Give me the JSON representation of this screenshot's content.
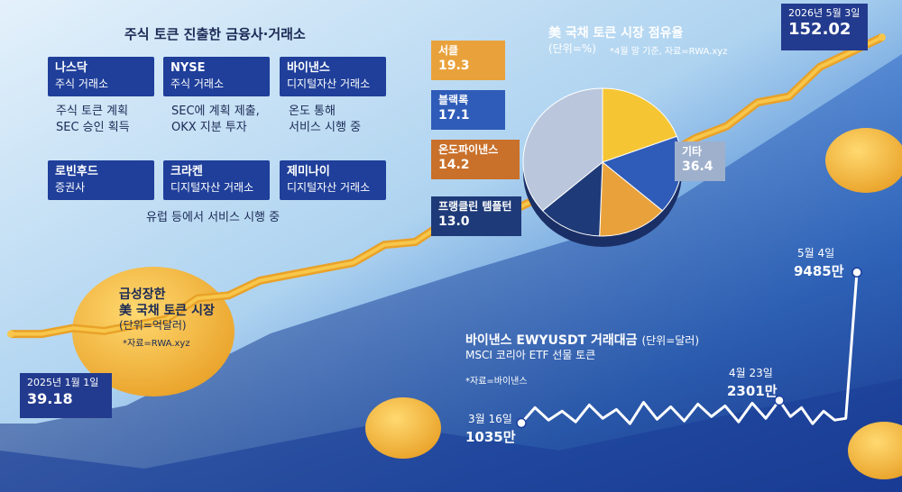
{
  "exchanges": {
    "title": "주식 토큰 진출한 금융사·거래소",
    "items": [
      {
        "name": "나스닥",
        "type": "주식 거래소",
        "note": [
          "주식 토큰 계획",
          "SEC 승인 획득"
        ]
      },
      {
        "name": "NYSE",
        "type": "주식 거래소",
        "note": [
          "SEC에 계획 제출,",
          "OKX 지분 투자"
        ]
      },
      {
        "name": "바이낸스",
        "type": "디지털자산 거래소",
        "note": [
          "온도 통해",
          "서비스 시행 중"
        ]
      },
      {
        "name": "로빈후드",
        "type": "증권사"
      },
      {
        "name": "크라켄",
        "type": "디지털자산 거래소"
      },
      {
        "name": "제미나이",
        "type": "디지털자산 거래소"
      }
    ],
    "bottom_note": "유럽 등에서 서비스 시행 중"
  },
  "chart_data": [
    {
      "type": "line",
      "title": "급성장한 美 국채 토큰 시장",
      "title_lines": [
        "급성장한",
        "美 국채 토큰 시장"
      ],
      "unit": "(단위=억달러)",
      "source": "*자료=RWA.xyz",
      "start": {
        "date": "2025년 1월 1일",
        "value": 39.18
      },
      "end": {
        "date": "2026년 5월 3일",
        "value": 152.02
      },
      "x": [
        "2025년 1월 1일",
        "2026년 5월 3일"
      ],
      "values": [
        39.18,
        152.02
      ]
    },
    {
      "type": "pie",
      "title": "美 국채 토큰 시장 점유율",
      "unit": "(단위=%)",
      "source": "*4월 말 기준, 자료=RWA.xyz",
      "categories": [
        "서클",
        "블랙록",
        "온도파이낸스",
        "프랭클린 템플턴",
        "기타"
      ],
      "values": [
        19.3,
        17.1,
        14.2,
        13.0,
        36.4
      ],
      "value_labels": [
        "19.3",
        "17.1",
        "14.2",
        "13.0",
        "36.4"
      ],
      "colors": [
        "#f5c533",
        "#2f5cb8",
        "#e9a23b",
        "#1e3a78",
        "#b9c6dc"
      ]
    },
    {
      "type": "line",
      "title": "바이낸스 EWYUSDT 거래대금",
      "unit": "(단위=달러)",
      "subtitle": "MSCI 코리아 ETF 선물 토큰",
      "source": "*자료=바이낸스",
      "points": [
        {
          "date": "3월 16일",
          "label": "1035만"
        },
        {
          "date": "4월 23일",
          "label": "2301만"
        },
        {
          "date": "5월 4일",
          "label": "9485만"
        }
      ],
      "x": [
        "3월 16일",
        "4월 23일",
        "5월 4일"
      ],
      "values": [
        1035,
        2301,
        9485
      ],
      "value_unit": "만"
    }
  ]
}
